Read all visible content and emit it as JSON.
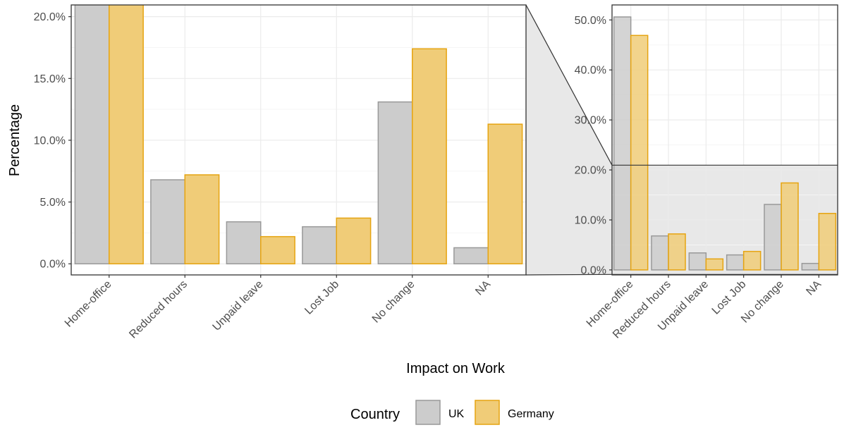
{
  "chart_data": {
    "type": "bar",
    "xlabel": "Impact on Work",
    "ylabel": "Percentage",
    "categories": [
      "Home-office",
      "Reduced hours",
      "Unpaid leave",
      "Lost Job",
      "No change",
      "NA"
    ],
    "series": [
      {
        "name": "UK",
        "values": [
          50.6,
          6.8,
          3.4,
          3.0,
          13.1,
          1.3
        ]
      },
      {
        "name": "Germany",
        "values": [
          46.9,
          7.2,
          2.2,
          3.7,
          17.4,
          11.3
        ]
      }
    ],
    "legend": {
      "title": "Country",
      "placement": "bottom"
    },
    "main_panel": {
      "ylim": [
        -0.9,
        20.95
      ],
      "yticks": [
        0,
        5,
        10,
        15,
        20
      ],
      "grid": true
    },
    "zoom_panel": {
      "ylim": [
        -1.0,
        53.0
      ],
      "yticks": [
        0,
        10,
        20,
        30,
        40,
        50
      ],
      "grid": true,
      "highlight_range": [
        -0.9,
        20.95
      ]
    },
    "tick_format": "{v}.0%"
  },
  "colors": {
    "UK_fill": "#cccccc",
    "UK_stroke": "#999999",
    "Germany_fill": "#f0cc78",
    "Germany_stroke": "#e6a411",
    "grid_major": "#ebebeb",
    "grid_minor": "#f5f5f5",
    "panel_border": "#333333",
    "zoom_fill": "#e8e8e8",
    "text": "#4d4d4d",
    "title_text": "#000000"
  }
}
